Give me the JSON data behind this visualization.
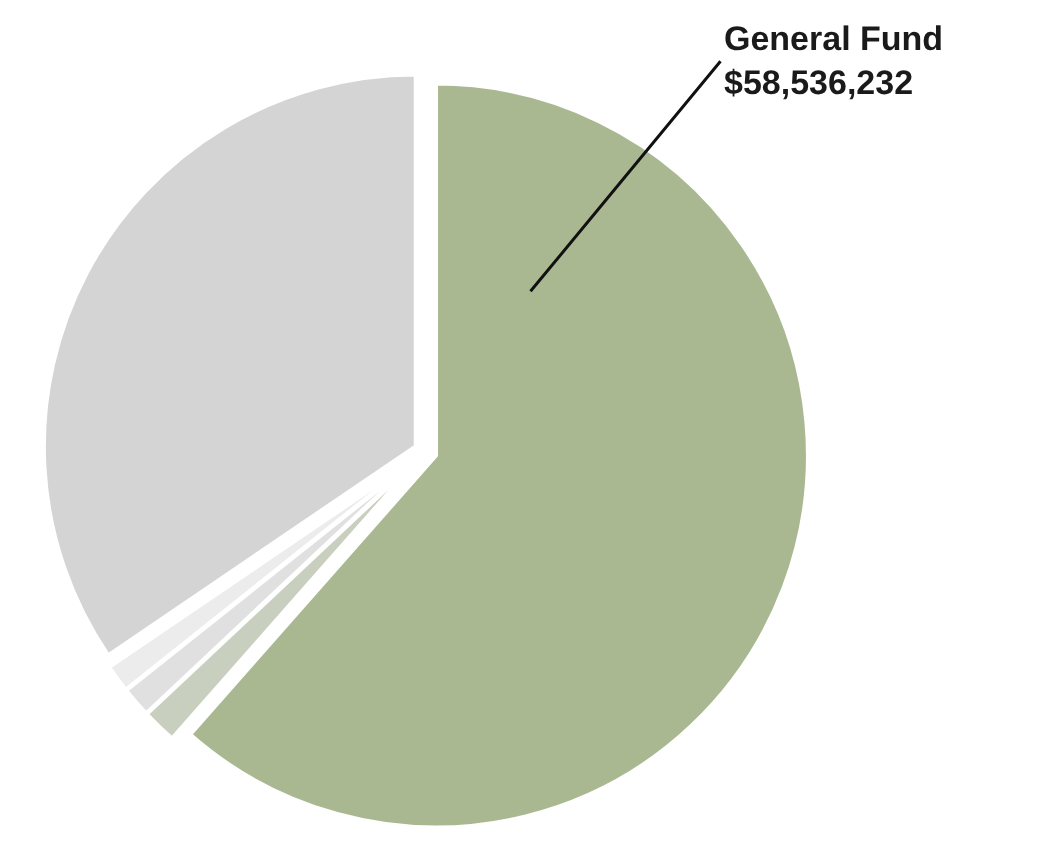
{
  "chart_data": {
    "type": "pie",
    "categories": [
      "General Fund",
      null,
      null,
      null,
      null
    ],
    "values": [
      58536232,
      1430000,
      1240000,
      1140000,
      32840000
    ],
    "colors": [
      "#aab892",
      "#c9cfbe",
      "#e0e0e0",
      "#ececec",
      "#d4d4d4"
    ],
    "value_labels": [
      "$58,536,232",
      null,
      null,
      null,
      null
    ]
  }
}
